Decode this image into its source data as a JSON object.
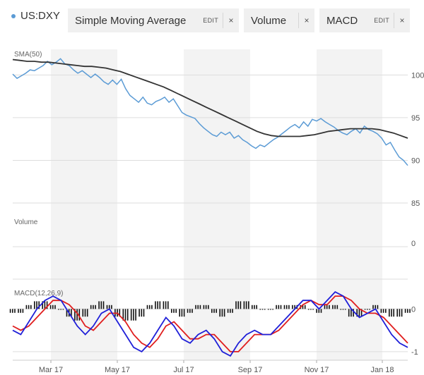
{
  "toolbar": {
    "symbol": "US:DXY",
    "chips": [
      {
        "label": "Simple Moving Average",
        "edit": "EDIT",
        "close": "×"
      },
      {
        "label": "Volume",
        "close": "×"
      },
      {
        "label": "MACD",
        "edit": "EDIT",
        "close": "×"
      }
    ]
  },
  "colors": {
    "price": "#5b9bd5",
    "sma": "#333333",
    "macd_line": "#1f1fd8",
    "signal_line": "#e01e1e",
    "histogram": "#111111",
    "shade": "#f3f3f3",
    "grid": "#dddddd"
  },
  "chart_data": [
    {
      "type": "line",
      "pane": "price",
      "title": "SMA(50)",
      "x_labels": [
        "Mar 17",
        "May 17",
        "Jul 17",
        "Sep 17",
        "Nov 17",
        "Jan 18"
      ],
      "y_ticks": [
        85,
        90,
        95,
        100
      ],
      "ylim": [
        85,
        103
      ],
      "grid": true,
      "series": [
        {
          "role": "price",
          "values": [
            100.1,
            99.6,
            99.9,
            100.2,
            100.6,
            100.5,
            100.8,
            101.1,
            101.6,
            101.2,
            101.5,
            101.9,
            101.3,
            101.1,
            100.6,
            100.2,
            100.5,
            100.1,
            99.7,
            100.1,
            99.7,
            99.2,
            98.9,
            99.4,
            98.9,
            99.5,
            98.4,
            97.6,
            97.2,
            96.8,
            97.4,
            96.7,
            96.5,
            96.9,
            97.1,
            97.4,
            96.8,
            97.2,
            96.4,
            95.6,
            95.3,
            95.1,
            94.9,
            94.3,
            93.8,
            93.4,
            93.0,
            92.8,
            93.3,
            93.0,
            93.3,
            92.6,
            92.9,
            92.4,
            92.1,
            91.7,
            91.4,
            91.8,
            91.6,
            92.0,
            92.4,
            92.7,
            93.1,
            93.5,
            93.9,
            94.2,
            93.8,
            94.5,
            94.0,
            94.8,
            94.6,
            94.9,
            94.5,
            94.2,
            93.9,
            93.5,
            93.2,
            93.0,
            93.4,
            93.7,
            93.2,
            94.0,
            93.6,
            93.4,
            93.1,
            92.6,
            91.8,
            92.1,
            91.2,
            90.4,
            90.0,
            89.4
          ]
        },
        {
          "role": "sma",
          "values": [
            101.8,
            101.7,
            101.6,
            101.6,
            101.5,
            101.5,
            101.4,
            101.3,
            101.2,
            101.1,
            101.0,
            101.0,
            100.9,
            100.8,
            100.6,
            100.4,
            100.1,
            99.8,
            99.5,
            99.2,
            98.9,
            98.6,
            98.2,
            97.8,
            97.4,
            97.0,
            96.6,
            96.2,
            95.8,
            95.4,
            95.0,
            94.6,
            94.2,
            93.8,
            93.4,
            93.1,
            92.9,
            92.8,
            92.8,
            92.8,
            92.8,
            92.9,
            93.0,
            93.2,
            93.4,
            93.5,
            93.6,
            93.7,
            93.7,
            93.7,
            93.7,
            93.6,
            93.4,
            93.2,
            92.9,
            92.6
          ]
        }
      ]
    },
    {
      "type": "bar",
      "pane": "volume",
      "title": "Volume",
      "y_ticks": [
        0
      ],
      "values": []
    },
    {
      "type": "line",
      "pane": "macd",
      "title": "MACD(12,26,9)",
      "y_ticks": [
        0,
        -1
      ],
      "ylim": [
        -1.2,
        0.5
      ],
      "series": [
        {
          "role": "macd",
          "values": [
            -0.5,
            -0.6,
            -0.3,
            0.0,
            0.2,
            0.3,
            0.2,
            -0.1,
            -0.4,
            -0.6,
            -0.4,
            -0.1,
            0.0,
            -0.3,
            -0.6,
            -0.9,
            -1.0,
            -0.8,
            -0.5,
            -0.2,
            -0.4,
            -0.7,
            -0.8,
            -0.6,
            -0.5,
            -0.7,
            -1.0,
            -1.1,
            -0.8,
            -0.6,
            -0.5,
            -0.6,
            -0.6,
            -0.4,
            -0.2,
            0.0,
            0.2,
            0.2,
            0.0,
            0.2,
            0.4,
            0.3,
            0.0,
            -0.2,
            -0.1,
            0.0,
            -0.3,
            -0.6,
            -0.8,
            -0.9
          ]
        },
        {
          "role": "signal",
          "values": [
            -0.4,
            -0.5,
            -0.4,
            -0.2,
            0.0,
            0.2,
            0.2,
            0.1,
            -0.1,
            -0.4,
            -0.5,
            -0.3,
            -0.1,
            -0.1,
            -0.3,
            -0.6,
            -0.8,
            -0.9,
            -0.7,
            -0.4,
            -0.3,
            -0.5,
            -0.7,
            -0.7,
            -0.6,
            -0.6,
            -0.8,
            -1.0,
            -1.0,
            -0.8,
            -0.6,
            -0.6,
            -0.6,
            -0.5,
            -0.3,
            -0.1,
            0.1,
            0.2,
            0.1,
            0.1,
            0.3,
            0.3,
            0.2,
            0.0,
            -0.1,
            -0.1,
            -0.2,
            -0.4,
            -0.6,
            -0.8
          ]
        }
      ]
    }
  ]
}
